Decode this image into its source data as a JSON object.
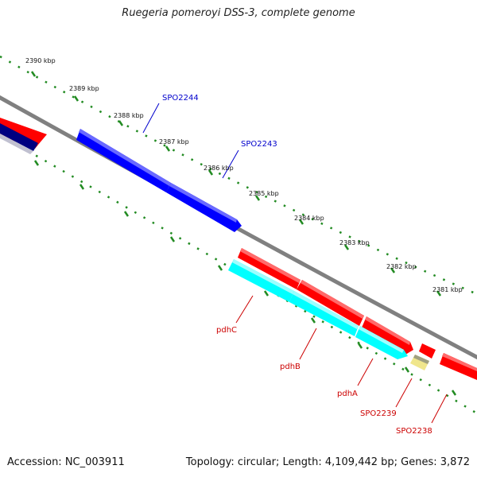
{
  "title": "Ruegeria pomeroyi DSS-3, complete genome",
  "footer": {
    "accession": "Accession: NC_003911",
    "topology": "Topology: circular; Length: 4,109,442 bp; Genes: 3,872"
  },
  "kbp_labels": [
    "2390 kbp",
    "2389 kbp",
    "2388 kbp",
    "2387 kbp",
    "2386 kbp",
    "2385 kbp",
    "2384 kbp",
    "2383 kbp",
    "2382 kbp",
    "2381 kbp"
  ],
  "gene_labels": {
    "spo2244": "SPO2244",
    "spo2243": "SPO2243",
    "pdhc": "pdhC",
    "pdhb": "pdhB",
    "pdha": "pdhA",
    "spo2239": "SPO2239",
    "spo2238": "SPO2238"
  },
  "colors": {
    "forward_gene": "#ff0000",
    "reverse_gene": "#0000ff",
    "reverse_cyan": "#00ffff",
    "pale_yellow": "#f0e68c",
    "backbone": "#808080",
    "tick": "#228b22",
    "blue_label": "#0000cc",
    "red_label": "#cc0000"
  }
}
